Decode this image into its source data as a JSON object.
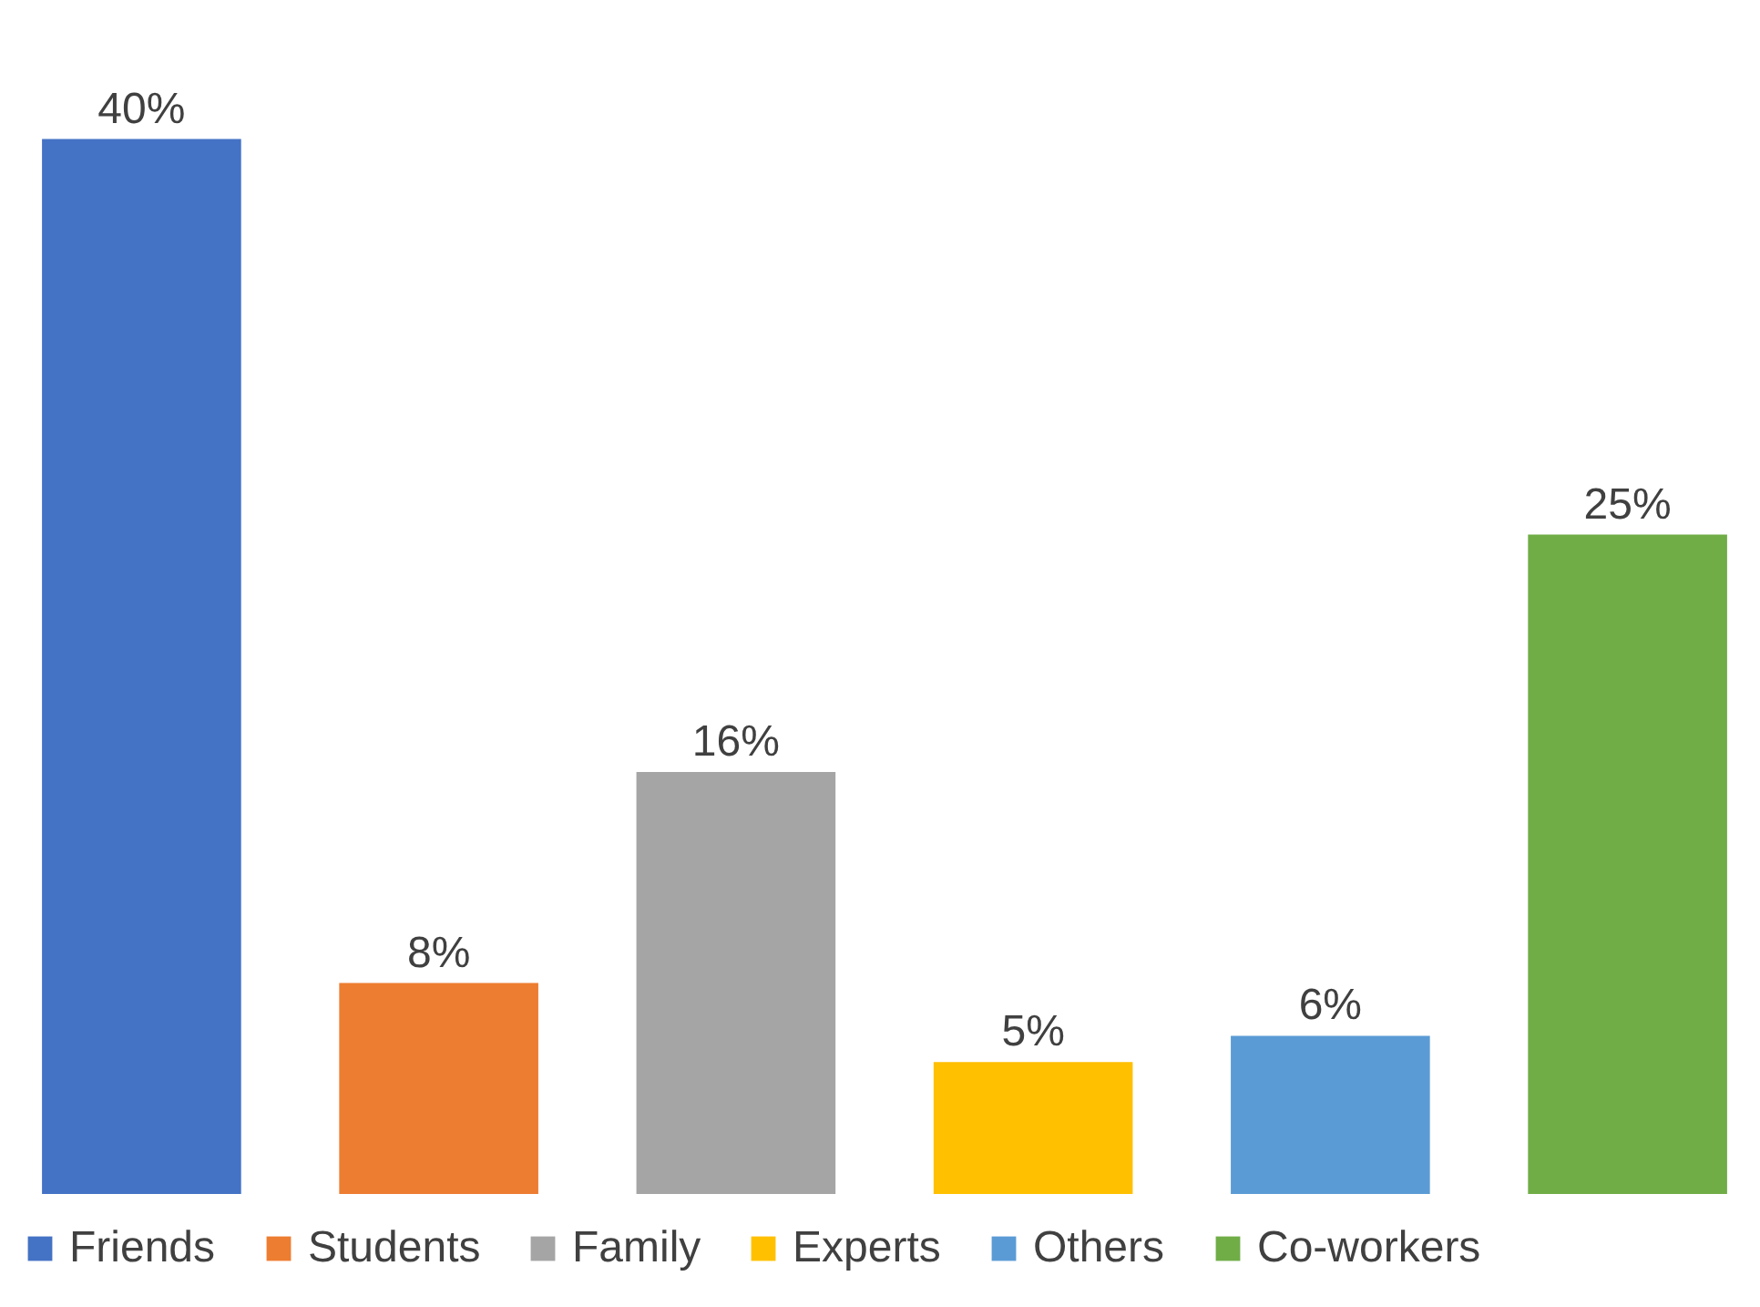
{
  "chart_data": {
    "type": "bar",
    "stacked": true,
    "categories": [
      null,
      null,
      null,
      null,
      null,
      null
    ],
    "series": [
      {
        "name": "Friends",
        "color": "#4472c4",
        "values": [
          40,
          null,
          null,
          null,
          null,
          null
        ],
        "value_labels": [
          "40%",
          null,
          null,
          null,
          null,
          null
        ]
      },
      {
        "name": "Students",
        "color": "#ed7d31",
        "values": [
          null,
          8,
          null,
          null,
          null,
          null
        ],
        "value_labels": [
          null,
          "8%",
          null,
          null,
          null,
          null
        ]
      },
      {
        "name": "Family",
        "color": "#a5a5a5",
        "values": [
          null,
          null,
          16,
          null,
          null,
          null
        ],
        "value_labels": [
          null,
          null,
          "16%",
          null,
          null,
          null
        ]
      },
      {
        "name": "Experts",
        "color": "#ffc000",
        "values": [
          null,
          null,
          null,
          5,
          null,
          null
        ],
        "value_labels": [
          null,
          null,
          null,
          "5%",
          null,
          null
        ]
      },
      {
        "name": "Others",
        "color": "#5b9bd5",
        "values": [
          null,
          null,
          null,
          null,
          6,
          null
        ],
        "value_labels": [
          null,
          null,
          null,
          null,
          "6%",
          null
        ]
      },
      {
        "name": "Co-workers",
        "color": "#70ad47",
        "values": [
          null,
          null,
          null,
          null,
          null,
          25
        ],
        "value_labels": [
          null,
          null,
          null,
          null,
          null,
          "25%"
        ]
      }
    ],
    "legend": "bottom",
    "tick_labels": false
  }
}
